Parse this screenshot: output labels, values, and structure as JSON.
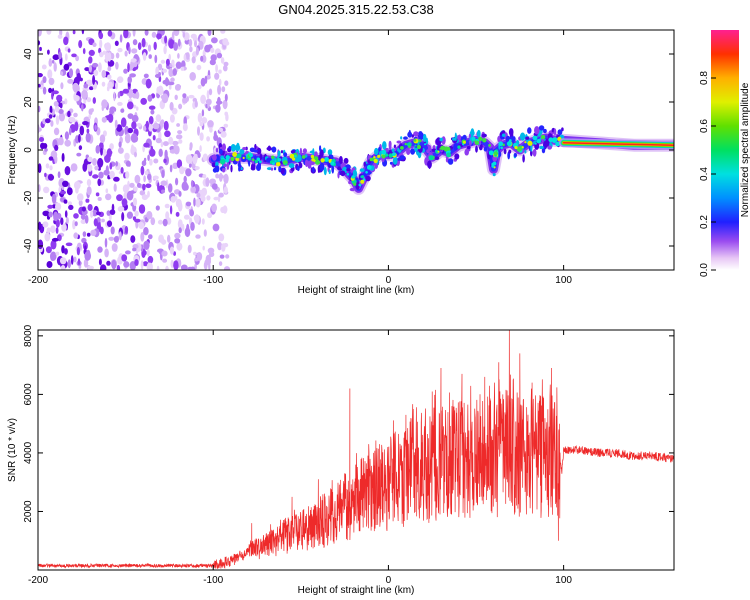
{
  "title": "GN04.2025.315.22.53.C38",
  "chart_data": [
    {
      "type": "heatmap",
      "name": "spectrogram",
      "xlabel": "Height of straight line (km)",
      "ylabel": "Frequency (Hz)",
      "xlim": [
        -200,
        163
      ],
      "ylim": [
        -50,
        50
      ],
      "xticks": [
        -200,
        -100,
        0,
        100
      ],
      "yticks": [
        -40,
        -20,
        0,
        20,
        40
      ],
      "colorbar": {
        "label": "Normalized spectral amplitude",
        "range": [
          0,
          1
        ],
        "ticks": [
          "0.0",
          "0.2",
          "0.4",
          "0.6",
          "0.8"
        ],
        "tick_values": [
          0.0,
          0.2,
          0.4,
          0.6,
          0.8
        ]
      },
      "noise_region_x": [
        -200,
        -92
      ],
      "signal_track": {
        "x": [
          -100,
          -90,
          -80,
          -70,
          -60,
          -50,
          -40,
          -30,
          -25,
          -20,
          -17,
          -15,
          -10,
          -5,
          0,
          5,
          10,
          15,
          20,
          22,
          25,
          30,
          35,
          40,
          45,
          50,
          55,
          58,
          60,
          62,
          65,
          70,
          75,
          80,
          85,
          90,
          95,
          100,
          120,
          140,
          163
        ],
        "y": [
          -4,
          -3,
          -3,
          -4,
          -5,
          -3,
          -4,
          -5,
          -8,
          -12,
          -16,
          -13,
          -5,
          -2,
          -2,
          -1,
          2,
          3,
          2,
          0,
          -3,
          0,
          -1,
          2,
          3,
          4,
          3,
          1,
          -8,
          0,
          2,
          3,
          0,
          3,
          4,
          5,
          4,
          4,
          3,
          2,
          2
        ]
      }
    },
    {
      "type": "line",
      "name": "snr",
      "xlabel": "Height of straight line (km)",
      "ylabel": "SNR (10 * v/v)",
      "xlim": [
        -200,
        163
      ],
      "ylim": [
        0,
        8200
      ],
      "xticks": [
        -200,
        -100,
        0,
        100
      ],
      "yticks": [
        2000,
        4000,
        6000,
        8000
      ],
      "color": "#ee2a2a",
      "envelope": {
        "x": [
          -200,
          -100,
          -90,
          -80,
          -70,
          -60,
          -50,
          -40,
          -30,
          -20,
          -10,
          0,
          10,
          20,
          30,
          40,
          50,
          60,
          70,
          80,
          90,
          97,
          99,
          100,
          110,
          120,
          130,
          140,
          150,
          163
        ],
        "y": [
          150,
          150,
          300,
          600,
          900,
          1100,
          1300,
          1600,
          1900,
          2300,
          2600,
          2900,
          3300,
          3500,
          3700,
          3800,
          3900,
          3900,
          4000,
          3900,
          3900,
          3800,
          3400,
          4100,
          4100,
          4000,
          4000,
          3900,
          3900,
          3800
        ]
      },
      "spikes": [
        {
          "x": -78,
          "y": 1600
        },
        {
          "x": -55,
          "y": 2500
        },
        {
          "x": -40,
          "y": 3100
        },
        {
          "x": -25,
          "y": 3300
        },
        {
          "x": -22,
          "y": 6200
        },
        {
          "x": -5,
          "y": 4300
        },
        {
          "x": 10,
          "y": 5300
        },
        {
          "x": 25,
          "y": 6100
        },
        {
          "x": 30,
          "y": 6900
        },
        {
          "x": 42,
          "y": 6700
        },
        {
          "x": 55,
          "y": 6600
        },
        {
          "x": 63,
          "y": 7100
        },
        {
          "x": 69,
          "y": 8200
        },
        {
          "x": 75,
          "y": 7400
        },
        {
          "x": 82,
          "y": 6400
        },
        {
          "x": 93,
          "y": 6900
        },
        {
          "x": 97,
          "y": 1000
        }
      ]
    }
  ]
}
